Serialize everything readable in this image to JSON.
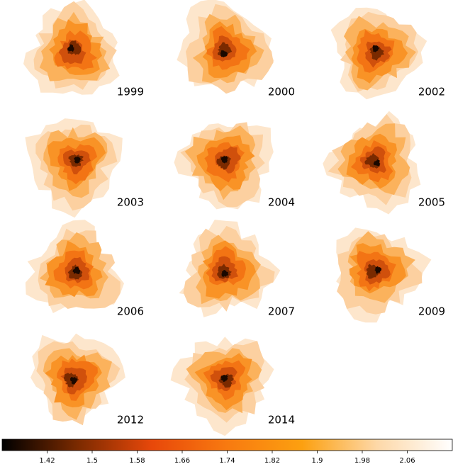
{
  "chart_data": {
    "type": "heatmap-grid",
    "panels": [
      "1999",
      "2000",
      "2002",
      "2003",
      "2004",
      "2005",
      "2006",
      "2007",
      "2009",
      "2012",
      "2014"
    ],
    "colorbar": {
      "lim": [
        1.34,
        2.14
      ],
      "ticks": [
        1.42,
        1.5,
        1.58,
        1.66,
        1.74,
        1.82,
        1.9,
        1.98,
        2.06
      ],
      "colormap": [
        "#000000",
        "#7a2a00",
        "#e8480a",
        "#f87a10",
        "#fca010",
        "#fdd8a8",
        "#ffffff"
      ]
    }
  }
}
